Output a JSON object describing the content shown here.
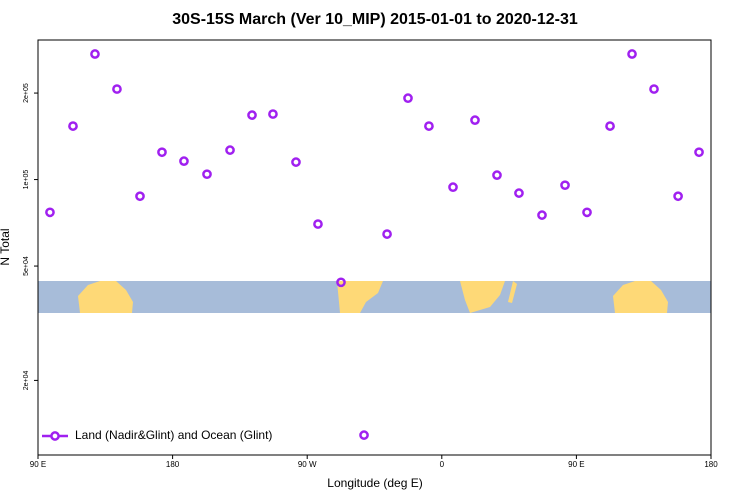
{
  "chart_data": {
    "type": "scatter",
    "title": "30S-15S March (Ver 10_MIP)   2015-01-01 to 2020-12-31",
    "x_label": "Longitude (deg E)",
    "y_label": "N Total",
    "xlim": [
      90,
      540
    ],
    "xticks": [
      {
        "value": 90,
        "label": "90 E"
      },
      {
        "value": 180,
        "label": "180"
      },
      {
        "value": 270,
        "label": "90 W"
      },
      {
        "value": 360,
        "label": "0"
      },
      {
        "value": 450,
        "label": "90 E"
      },
      {
        "value": 540,
        "label": "180"
      }
    ],
    "ylim": [
      11000,
      306000
    ],
    "log_y": true,
    "yticks": [
      {
        "value": 20000,
        "label": "2e+04"
      },
      {
        "value": 50000,
        "label": "5e+04"
      },
      {
        "value": 100000,
        "label": "1e+05"
      },
      {
        "value": 200000,
        "label": "2e+05"
      }
    ],
    "legend": "bottom-left",
    "series": [
      {
        "name": "Land (Nadir&Glint) and Ocean (Glint)",
        "color": "#a020f0",
        "x": [
          98,
          113.4,
          128.1,
          142.8,
          158.2,
          172.9,
          187.6,
          203,
          218.4,
          233.1,
          247.1,
          262.5,
          277.2,
          292.6,
          308,
          323.4,
          337.4,
          351.4,
          367.5,
          382.2,
          396.9,
          411.6,
          427,
          442.4,
          457.1,
          472.5,
          487.2,
          501.9,
          518,
          532
        ],
        "values": [
          76900,
          153500,
          273500,
          206500,
          87500,
          124500,
          115900,
          104400,
          126600,
          167600,
          169000,
          115000,
          70000,
          43900,
          12900,
          64600,
          192000,
          153500,
          94100,
          161000,
          103600,
          89700,
          75200,
          95600,
          76900,
          153500,
          273500,
          206500,
          87500,
          124500
        ]
      }
    ]
  }
}
